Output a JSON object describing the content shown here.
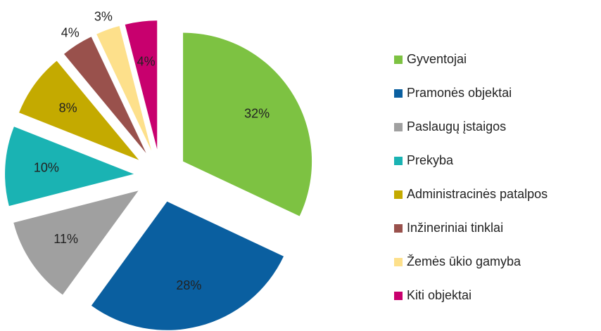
{
  "chart_data": {
    "type": "pie",
    "categories": [
      "Gyventojai",
      "Pramonės objektai",
      "Paslaugų įstaigos",
      "Prekyba",
      "Administracinės patalpos",
      "Inžineriniai tinklai",
      "Žemės ūkio gamyba",
      "Kiti objektai"
    ],
    "values": [
      32,
      28,
      11,
      10,
      8,
      4,
      3,
      4
    ],
    "value_labels": [
      "32%",
      "28%",
      "11%",
      "10%",
      "8%",
      "4%",
      "3%",
      "4%"
    ],
    "colors": [
      "#7dc242",
      "#0a5fa0",
      "#a0a0a0",
      "#1ab3b3",
      "#c4aa00",
      "#99514c",
      "#fde08b",
      "#c8006e"
    ],
    "legend": "right"
  }
}
